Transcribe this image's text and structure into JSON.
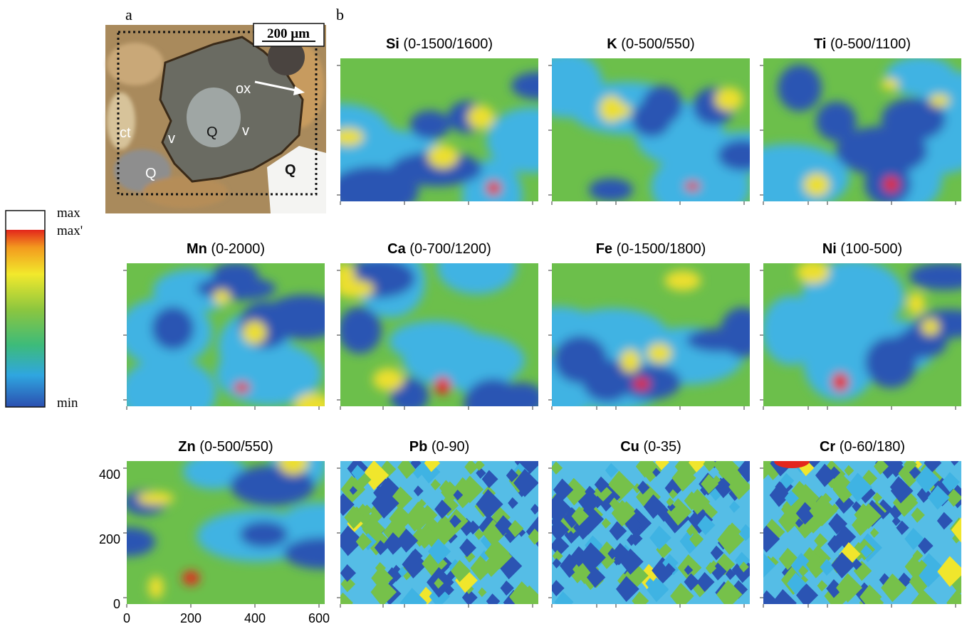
{
  "panel_labels": [
    "a",
    "b"
  ],
  "micrograph": {
    "scale_bar": "200 µm",
    "labels": [
      "ox",
      "Q",
      "v",
      "v",
      "ct",
      "Q",
      "Q"
    ]
  },
  "colorbar": {
    "max": "max",
    "max_prime": "max'",
    "min": "min"
  },
  "maps": [
    {
      "element": "Si",
      "range": "(0-1500/1600)"
    },
    {
      "element": "K",
      "range": "(0-500/550)"
    },
    {
      "element": "Ti",
      "range": "(0-500/1100)"
    },
    {
      "element": "Mn",
      "range": "(0-2000)"
    },
    {
      "element": "Ca",
      "range": "(0-700/1200)"
    },
    {
      "element": "Fe",
      "range": "(0-1500/1800)"
    },
    {
      "element": "Ni",
      "range": "(100-500)"
    },
    {
      "element": "Zn",
      "range": "(0-500/550)"
    },
    {
      "element": "Pb",
      "range": "(0-90)"
    },
    {
      "element": "Cu",
      "range": "(0-35)"
    },
    {
      "element": "Cr",
      "range": "(0-60/180)"
    }
  ],
  "axes": {
    "xticks": [
      0,
      200,
      400,
      600
    ],
    "yticks": [
      0,
      200,
      400
    ]
  }
}
